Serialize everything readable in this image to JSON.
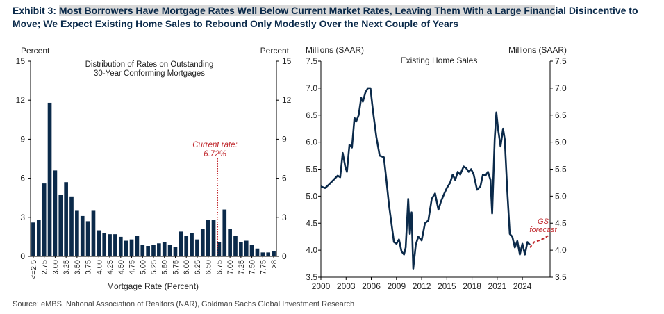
{
  "title": {
    "prefix": "Exhibit 3: ",
    "highlighted": "Most Borrowers Have Mortgage Rates Well Below Current Market Rates, Leaving Them With a Large Financ",
    "rest": "ial Disincentive to Move; We Expect Existing Home Sales to Rebound Only Modestly Over the Next Couple of Years"
  },
  "source": "Source: eMBS, National Association of Realtors (NAR), Goldman Sachs Global Investment Research",
  "colors": {
    "bar": "#0b2a4a",
    "line": "#0b2a4a",
    "annotation": "#c0282d",
    "title": "#0b2a4a"
  },
  "chart_data": [
    {
      "type": "bar",
      "title": "Distribution of Rates on Outstanding 30-Year Conforming Mortgages",
      "title_lines": [
        "Distribution of Rates on Outstanding",
        "30-Year Conforming  Mortgages"
      ],
      "xlabel": "Mortgage Rate (Percent)",
      "ylabel_left": "Percent",
      "ylabel_right": "Percent",
      "ylim": [
        0,
        15
      ],
      "yticks": [
        0,
        3,
        6,
        9,
        12,
        15
      ],
      "categories": [
        "<=2.5",
        "2.625",
        "2.75",
        "2.875",
        "3.00",
        "3.125",
        "3.25",
        "3.375",
        "3.50",
        "3.625",
        "3.75",
        "3.875",
        "4.00",
        "4.125",
        "4.25",
        "4.375",
        "4.50",
        "4.625",
        "4.75",
        "4.875",
        "5.00",
        "5.125",
        "5.25",
        "5.375",
        "5.50",
        "5.625",
        "5.75",
        "5.875",
        "6.00",
        "6.125",
        "6.25",
        "6.375",
        "6.50",
        "6.625",
        "6.75",
        "6.875",
        "7.00",
        "7.125",
        "7.25",
        "7.375",
        "7.50",
        "7.625",
        "7.75",
        "7.875",
        ">8"
      ],
      "tick_labels": [
        "<=2.5",
        "2.75",
        "3.00",
        "3.25",
        "3.50",
        "3.75",
        "4.00",
        "4.25",
        "4.50",
        "4.75",
        "5.00",
        "5.25",
        "5.50",
        "5.75",
        "6.00",
        "6.25",
        "6.50",
        "6.75",
        "7.00",
        "7.25",
        "7.50",
        "7.75",
        ">8"
      ],
      "values": [
        2.6,
        2.8,
        5.6,
        11.8,
        6.6,
        4.7,
        5.7,
        4.6,
        3.5,
        3.1,
        2.7,
        3.5,
        2.0,
        1.8,
        1.7,
        1.7,
        1.5,
        1.2,
        1.3,
        1.6,
        0.9,
        0.8,
        0.9,
        1.0,
        1.1,
        0.9,
        0.7,
        1.9,
        1.6,
        1.8,
        1.3,
        2.1,
        2.8,
        2.8,
        1.1,
        3.6,
        2.1,
        1.6,
        1.1,
        1.2,
        0.9,
        0.6,
        0.3,
        0.3,
        0.4
      ],
      "annotation": {
        "label_lines": [
          "Current rate:",
          "6.72%"
        ],
        "value": 6.72
      }
    },
    {
      "type": "line",
      "title": "Existing Home Sales",
      "ylabel_left": "Millions (SAAR)",
      "ylabel_right": "Millions (SAAR)",
      "xlim": [
        2000,
        2027.3
      ],
      "ylim": [
        3.5,
        7.5
      ],
      "xticks": [
        2000,
        2003,
        2006,
        2009,
        2012,
        2015,
        2018,
        2021,
        2024
      ],
      "yticks": [
        3.5,
        4.0,
        4.5,
        5.0,
        5.5,
        6.0,
        6.5,
        7.0,
        7.5
      ],
      "series": [
        {
          "x": [
            2000.0,
            2000.5,
            2001.0,
            2001.5,
            2002.0,
            2002.3,
            2002.6,
            2002.9,
            2003.1,
            2003.4,
            2003.7,
            2004.0,
            2004.2,
            2004.5,
            2004.8,
            2005.0,
            2005.3,
            2005.6,
            2005.9,
            2006.2,
            2006.6,
            2007.0,
            2007.5,
            2007.8,
            2008.1,
            2008.4,
            2008.7,
            2009.0,
            2009.3,
            2009.6,
            2009.9,
            2010.1,
            2010.4,
            2010.6,
            2010.8,
            2011.0,
            2011.3,
            2011.6,
            2012.0,
            2012.4,
            2012.8,
            2013.2,
            2013.6,
            2014.0,
            2014.3,
            2014.7,
            2015.0,
            2015.4,
            2015.7,
            2016.0,
            2016.3,
            2016.6,
            2017.0,
            2017.3,
            2017.6,
            2017.9,
            2018.2,
            2018.6,
            2019.0,
            2019.3,
            2019.6,
            2019.9,
            2020.2,
            2020.4,
            2020.7,
            2020.9,
            2021.1,
            2021.4,
            2021.7,
            2021.9,
            2022.2,
            2022.5,
            2022.8,
            2023.1,
            2023.4,
            2023.7,
            2024.0,
            2024.3,
            2024.6,
            2024.9
          ],
          "y": [
            5.18,
            5.15,
            5.22,
            5.3,
            5.38,
            5.35,
            5.8,
            5.55,
            5.45,
            5.95,
            5.9,
            6.45,
            6.38,
            6.5,
            6.82,
            6.75,
            6.92,
            7.0,
            7.0,
            6.58,
            6.1,
            5.75,
            5.72,
            5.3,
            4.85,
            4.5,
            4.15,
            4.12,
            4.2,
            3.98,
            3.92,
            4.05,
            4.95,
            4.3,
            4.7,
            3.66,
            4.1,
            4.25,
            4.18,
            4.5,
            4.55,
            4.95,
            5.05,
            4.75,
            4.9,
            5.05,
            5.15,
            5.25,
            5.4,
            5.3,
            5.45,
            5.4,
            5.55,
            5.52,
            5.45,
            5.5,
            5.4,
            5.12,
            5.18,
            5.4,
            5.38,
            5.45,
            5.3,
            4.68,
            6.05,
            6.55,
            6.25,
            5.92,
            6.25,
            6.05,
            5.1,
            4.3,
            4.25,
            4.05,
            4.17,
            3.92,
            4.12,
            3.92,
            4.15,
            4.1
          ]
        },
        {
          "x": [
            2024.9,
            2025.4,
            2026.0,
            2026.6,
            2027.2
          ],
          "y": [
            4.05,
            4.15,
            4.18,
            4.22,
            4.28
          ]
        }
      ],
      "annotation": {
        "label_lines": [
          "GS",
          "forecast"
        ]
      }
    }
  ]
}
